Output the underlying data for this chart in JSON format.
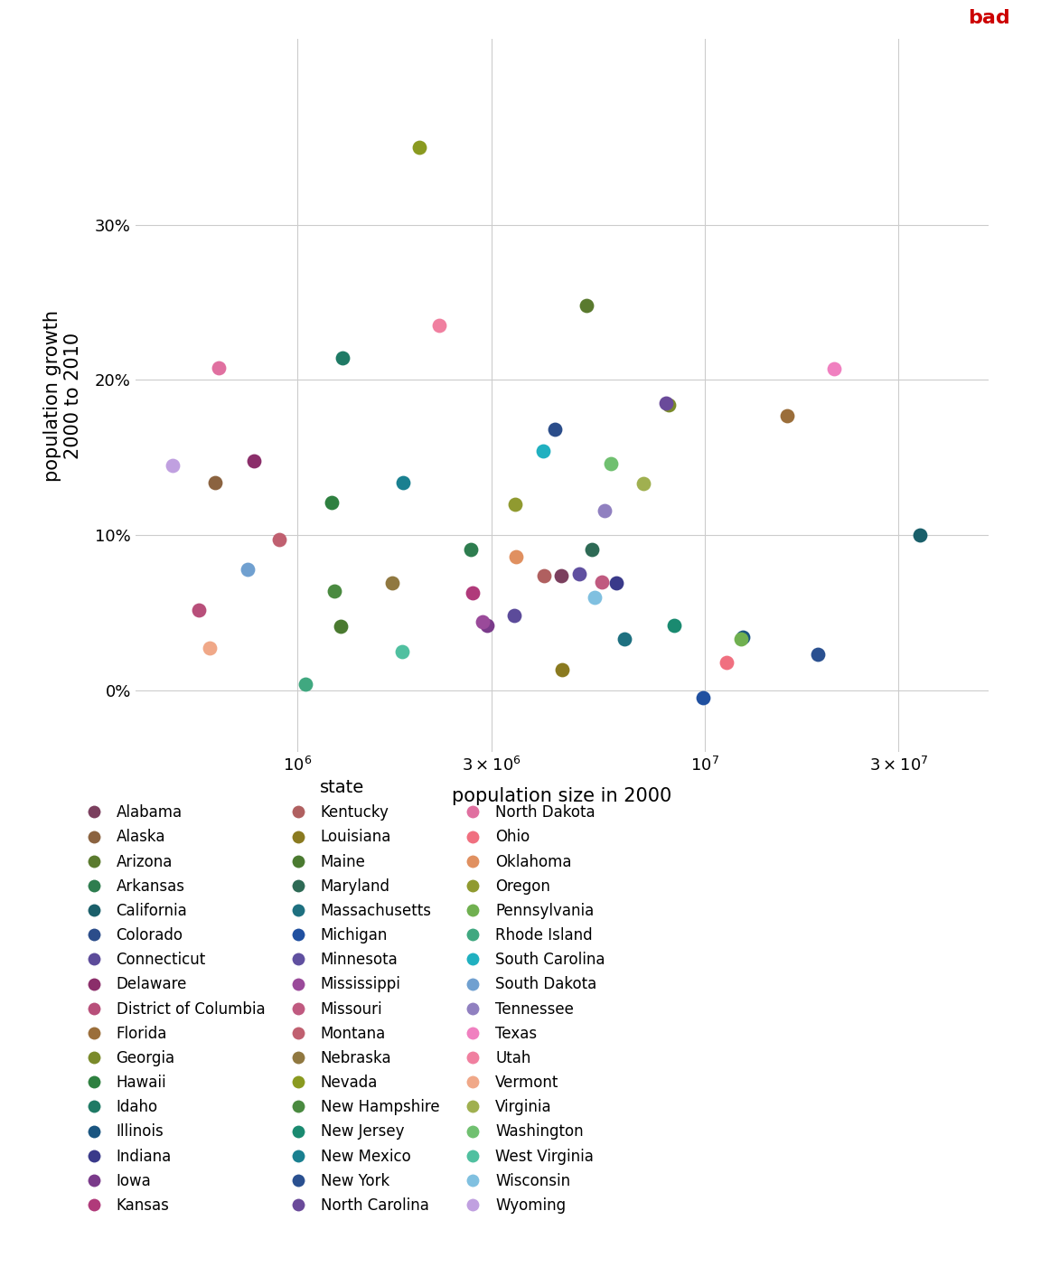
{
  "states": [
    {
      "name": "Alabama",
      "pop2000": 4447100,
      "growth": 0.074,
      "color": "#7B3F5E"
    },
    {
      "name": "Alaska",
      "pop2000": 626932,
      "growth": 0.134,
      "color": "#8B6340"
    },
    {
      "name": "Arizona",
      "pop2000": 5130632,
      "growth": 0.248,
      "color": "#5A7A2E"
    },
    {
      "name": "Arkansas",
      "pop2000": 2673400,
      "growth": 0.091,
      "color": "#2E7D4F"
    },
    {
      "name": "California",
      "pop2000": 33871648,
      "growth": 0.1,
      "color": "#1A5F6A"
    },
    {
      "name": "Colorado",
      "pop2000": 4301261,
      "growth": 0.168,
      "color": "#2B4D8A"
    },
    {
      "name": "Connecticut",
      "pop2000": 3405565,
      "growth": 0.048,
      "color": "#5C4B9A"
    },
    {
      "name": "Delaware",
      "pop2000": 783600,
      "growth": 0.148,
      "color": "#8B2E6A"
    },
    {
      "name": "District of Columbia",
      "pop2000": 572059,
      "growth": 0.052,
      "color": "#B84F7A"
    },
    {
      "name": "Florida",
      "pop2000": 15982378,
      "growth": 0.177,
      "color": "#9B6E3A"
    },
    {
      "name": "Georgia",
      "pop2000": 8186453,
      "growth": 0.184,
      "color": "#7A8A2A"
    },
    {
      "name": "Hawaii",
      "pop2000": 1211537,
      "growth": 0.121,
      "color": "#2E8040"
    },
    {
      "name": "Idaho",
      "pop2000": 1293953,
      "growth": 0.214,
      "color": "#1F7A65"
    },
    {
      "name": "Illinois",
      "pop2000": 12419293,
      "growth": 0.034,
      "color": "#1A5580"
    },
    {
      "name": "Indiana",
      "pop2000": 6080485,
      "growth": 0.069,
      "color": "#3A3A8A"
    },
    {
      "name": "Iowa",
      "pop2000": 2926324,
      "growth": 0.042,
      "color": "#7A3A8A"
    },
    {
      "name": "Kansas",
      "pop2000": 2688418,
      "growth": 0.063,
      "color": "#B03A7A"
    },
    {
      "name": "Kentucky",
      "pop2000": 4041769,
      "growth": 0.074,
      "color": "#B06060"
    },
    {
      "name": "Louisiana",
      "pop2000": 4468976,
      "growth": 0.013,
      "color": "#8A7A20"
    },
    {
      "name": "Maine",
      "pop2000": 1274923,
      "growth": 0.041,
      "color": "#4A7A30"
    },
    {
      "name": "Maryland",
      "pop2000": 5296486,
      "growth": 0.091,
      "color": "#2E6A55"
    },
    {
      "name": "Massachusetts",
      "pop2000": 6349097,
      "growth": 0.033,
      "color": "#1E7080"
    },
    {
      "name": "Michigan",
      "pop2000": 9938444,
      "growth": -0.005,
      "color": "#2050A0"
    },
    {
      "name": "Minnesota",
      "pop2000": 4919479,
      "growth": 0.075,
      "color": "#6050A0"
    },
    {
      "name": "Mississippi",
      "pop2000": 2844658,
      "growth": 0.044,
      "color": "#9A4A9A"
    },
    {
      "name": "Missouri",
      "pop2000": 5595211,
      "growth": 0.07,
      "color": "#C05A80"
    },
    {
      "name": "Montana",
      "pop2000": 902195,
      "growth": 0.097,
      "color": "#C06070"
    },
    {
      "name": "Nebraska",
      "pop2000": 1711263,
      "growth": 0.069,
      "color": "#907840"
    },
    {
      "name": "Nevada",
      "pop2000": 1998257,
      "growth": 0.35,
      "color": "#8A9A20"
    },
    {
      "name": "New Hampshire",
      "pop2000": 1235786,
      "growth": 0.064,
      "color": "#4A8A40"
    },
    {
      "name": "New Jersey",
      "pop2000": 8414350,
      "growth": 0.042,
      "color": "#1A8A70"
    },
    {
      "name": "New Mexico",
      "pop2000": 1819046,
      "growth": 0.134,
      "color": "#1A8090"
    },
    {
      "name": "New York",
      "pop2000": 18976457,
      "growth": 0.023,
      "color": "#2A5090"
    },
    {
      "name": "North Carolina",
      "pop2000": 8049313,
      "growth": 0.185,
      "color": "#6A4A9A"
    },
    {
      "name": "North Dakota",
      "pop2000": 642200,
      "growth": 0.208,
      "color": "#E070A0"
    },
    {
      "name": "Ohio",
      "pop2000": 11353140,
      "growth": 0.018,
      "color": "#F07080"
    },
    {
      "name": "Oklahoma",
      "pop2000": 3450654,
      "growth": 0.086,
      "color": "#E09060"
    },
    {
      "name": "Oregon",
      "pop2000": 3421399,
      "growth": 0.12,
      "color": "#909A30"
    },
    {
      "name": "Pennsylvania",
      "pop2000": 12281054,
      "growth": 0.033,
      "color": "#70B050"
    },
    {
      "name": "Rhode Island",
      "pop2000": 1048319,
      "growth": 0.004,
      "color": "#40A880"
    },
    {
      "name": "South Carolina",
      "pop2000": 4012012,
      "growth": 0.154,
      "color": "#20B0C0"
    },
    {
      "name": "South Dakota",
      "pop2000": 754844,
      "growth": 0.078,
      "color": "#70A0D0"
    },
    {
      "name": "Tennessee",
      "pop2000": 5689283,
      "growth": 0.116,
      "color": "#9080C0"
    },
    {
      "name": "Texas",
      "pop2000": 20851820,
      "growth": 0.207,
      "color": "#F080C0"
    },
    {
      "name": "Utah",
      "pop2000": 2233169,
      "growth": 0.235,
      "color": "#F080A0"
    },
    {
      "name": "Vermont",
      "pop2000": 608827,
      "growth": 0.027,
      "color": "#F0A888"
    },
    {
      "name": "Virginia",
      "pop2000": 7078515,
      "growth": 0.133,
      "color": "#A0B050"
    },
    {
      "name": "Washington",
      "pop2000": 5894121,
      "growth": 0.146,
      "color": "#70C070"
    },
    {
      "name": "West Virginia",
      "pop2000": 1808344,
      "growth": 0.025,
      "color": "#50C0A0"
    },
    {
      "name": "Wisconsin",
      "pop2000": 5363675,
      "growth": 0.06,
      "color": "#80C0E0"
    },
    {
      "name": "Wyoming",
      "pop2000": 493782,
      "growth": 0.145,
      "color": "#C0A0E0"
    }
  ],
  "title": "bad",
  "xlabel": "population size in 2000",
  "ylabel": "population growth\n2000 to 2010",
  "legend_title": "state",
  "ylim": [
    -0.04,
    0.42
  ],
  "xlim": [
    400000.0,
    50000000.0
  ],
  "yticks": [
    0.0,
    0.1,
    0.2,
    0.3
  ],
  "ytick_labels": [
    "0%",
    "10%",
    "20%",
    "30%"
  ],
  "xtick_positions": [
    1000000,
    3000000,
    10000000,
    30000000
  ],
  "background_color": "#ffffff",
  "grid_color": "#cccccc",
  "marker_size": 130,
  "title_color": "#cc0000",
  "title_fontsize": 16,
  "axis_label_fontsize": 15,
  "tick_fontsize": 13,
  "legend_fontsize": 12,
  "legend_title_fontsize": 14,
  "legend_marker_size": 11
}
